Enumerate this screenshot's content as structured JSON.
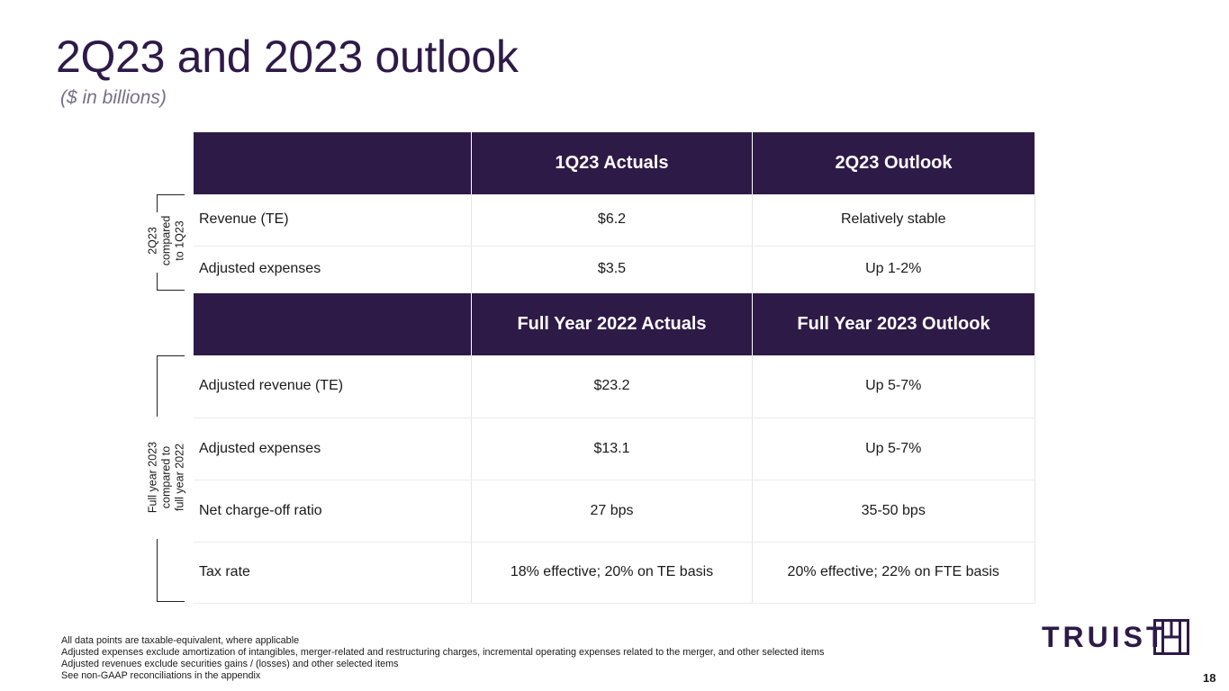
{
  "title": "2Q23 and 2023 outlook",
  "subtitle": "($ in billions)",
  "quarterly": {
    "side_label": [
      "2Q23",
      "compared",
      "to 1Q23"
    ],
    "headers": [
      "",
      "1Q23 Actuals",
      "2Q23 Outlook"
    ],
    "rows": [
      {
        "metric": "Revenue (TE)",
        "actual": "$6.2",
        "outlook": "Relatively stable"
      },
      {
        "metric": "Adjusted expenses",
        "actual": "$3.5",
        "outlook": "Up 1-2%"
      }
    ]
  },
  "full_year": {
    "side_label": [
      "Full year 2023",
      "compared to",
      "full year 2022"
    ],
    "headers": [
      "",
      "Full Year 2022 Actuals",
      "Full Year 2023 Outlook"
    ],
    "rows": [
      {
        "metric": "Adjusted revenue (TE)",
        "actual": "$23.2",
        "outlook": "Up 5-7%"
      },
      {
        "metric": "Adjusted expenses",
        "actual": "$13.1",
        "outlook": "Up 5-7%"
      },
      {
        "metric": "Net charge-off ratio",
        "actual": "27 bps",
        "outlook": "35-50 bps"
      },
      {
        "metric": "Tax rate",
        "actual": "18% effective; 20% on TE basis",
        "outlook": "20% effective; 22% on FTE basis"
      }
    ]
  },
  "footnotes": [
    "All data points are taxable-equivalent, where applicable",
    "Adjusted expenses exclude amortization of intangibles, merger-related and restructuring charges, incremental operating expenses related to the merger, and other selected items",
    "Adjusted revenues exclude securities gains / (losses) and other selected items",
    "See non-GAAP reconciliations in the appendix"
  ],
  "logo": {
    "text": "TRUIST",
    "icon": "truist-mark-icon"
  },
  "page_number": "18",
  "colors": {
    "brand_purple": "#2e1a47",
    "subtitle_gray": "#7a6f86"
  }
}
